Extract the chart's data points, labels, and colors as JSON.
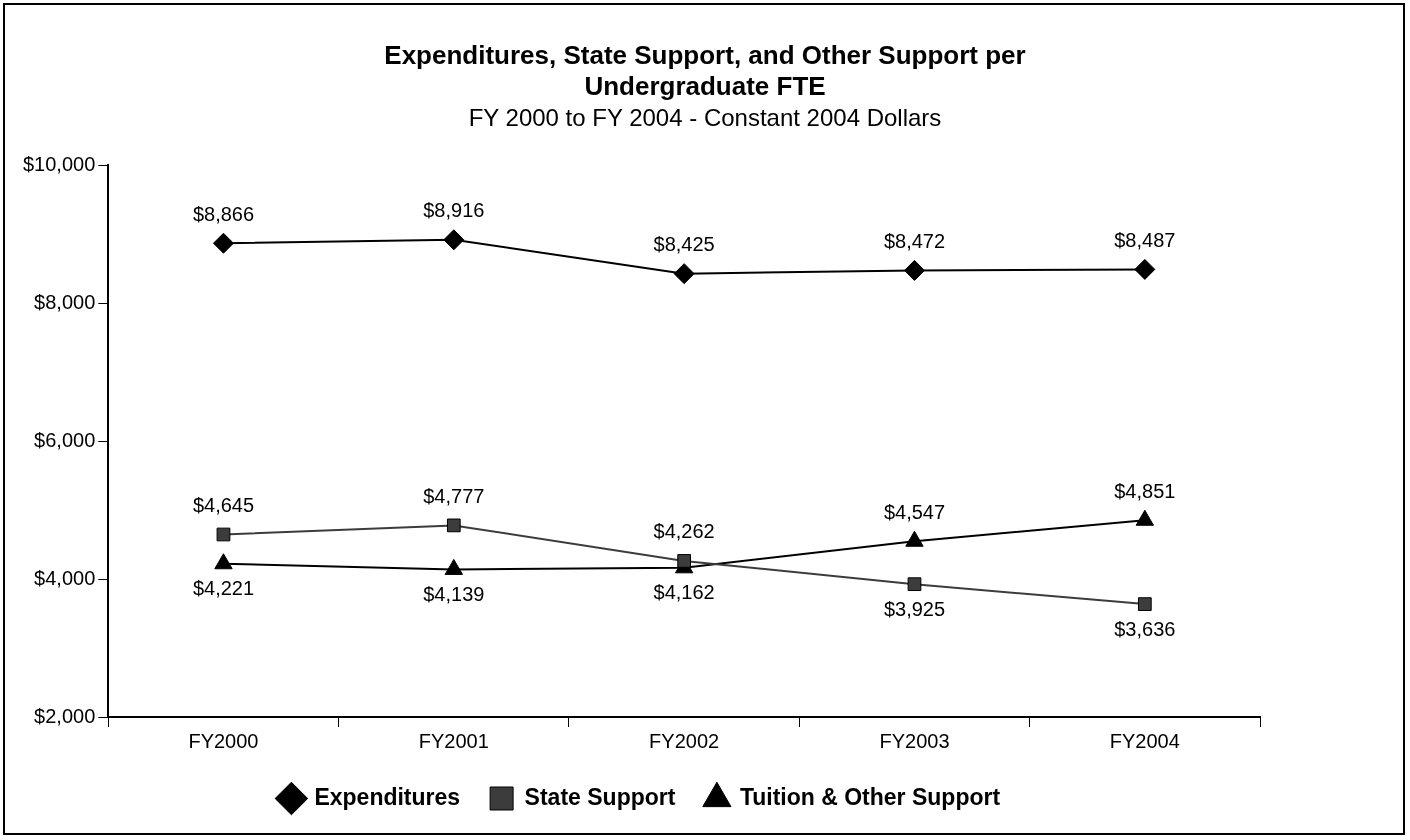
{
  "chart_data": {
    "type": "line",
    "title": "Expenditures, State Support, and Other Support per Undergraduate FTE",
    "subtitle": "FY 2000 to FY 2004 - Constant 2004 Dollars",
    "categories": [
      "FY2000",
      "FY2001",
      "FY2002",
      "FY2003",
      "FY2004"
    ],
    "series": [
      {
        "name": "Expenditures",
        "color": "#000000",
        "marker": "diamond",
        "values": [
          8866,
          8916,
          8425,
          8472,
          8487
        ],
        "value_labels": [
          "$8,866",
          "$8,916",
          "$8,425",
          "$8,472",
          "$8,487"
        ]
      },
      {
        "name": "State Support",
        "color": "#3c3c3c",
        "marker": "square",
        "values": [
          4645,
          4777,
          4262,
          3925,
          3636
        ],
        "value_labels": [
          "$4,645",
          "$4,777",
          "$4,262",
          "$3,925",
          "$3,636"
        ]
      },
      {
        "name": "Tuition & Other Support",
        "color": "#000000",
        "marker": "triangle",
        "values": [
          4221,
          4139,
          4162,
          4547,
          4851
        ],
        "value_labels": [
          "$4,221",
          "$4,139",
          "$4,162",
          "$4,547",
          "$4,851"
        ]
      }
    ],
    "ylim": [
      2000,
      10000
    ],
    "yticks": [
      {
        "value": 2000,
        "label": "$2,000"
      },
      {
        "value": 4000,
        "label": "$4,000"
      },
      {
        "value": 6000,
        "label": "$6,000"
      },
      {
        "value": 8000,
        "label": "$8,000"
      },
      {
        "value": 10000,
        "label": "$10,000"
      }
    ],
    "grid": false,
    "legend": "bottom",
    "line_style": "solid"
  }
}
